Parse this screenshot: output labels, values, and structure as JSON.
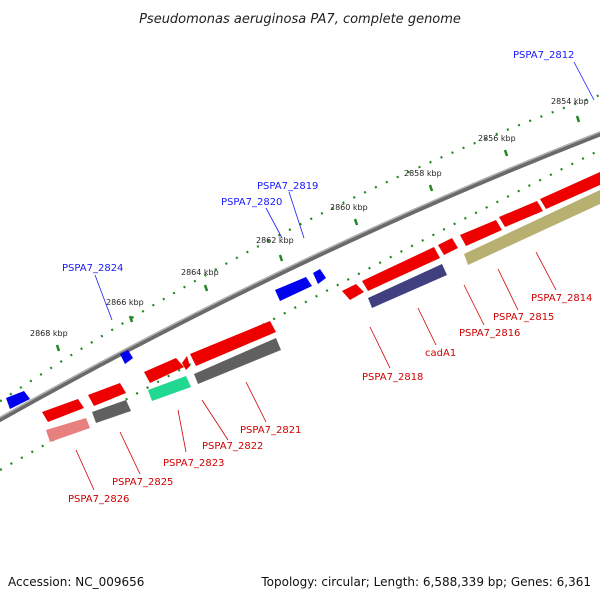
{
  "title": "Pseudomonas aeruginosa PA7, complete genome",
  "footer": {
    "accession": "Accession: NC_009656",
    "topology": "Topology: circular; Length: 6,588,339 bp; Genes: 6,361"
  },
  "ticks": [
    "2854 kbp",
    "2856 kbp",
    "2858 kbp",
    "2860 kbp",
    "2862 kbp",
    "2864 kbp",
    "2866 kbp",
    "2868 kbp"
  ],
  "labels_forward": [
    "PSPA7_2812",
    "PSPA7_2819",
    "PSPA7_2820",
    "PSPA7_2824"
  ],
  "labels_reverse": [
    "PSPA7_2814",
    "PSPA7_2815",
    "PSPA7_2816",
    "cadA1",
    "PSPA7_2818",
    "PSPA7_2821",
    "PSPA7_2822",
    "PSPA7_2823",
    "PSPA7_2825",
    "PSPA7_2826"
  ],
  "colors": {
    "forward_gene": "#0000ee",
    "reverse_gene": "#ee0000",
    "backbone": "#888888",
    "tick": "#228822",
    "label_forward": "#1a1aff",
    "label_reverse": "#d00000",
    "olive": "#b8b070",
    "navy": "#404080",
    "gray": "#606060",
    "teal": "#20d890",
    "pink": "#e88080"
  }
}
